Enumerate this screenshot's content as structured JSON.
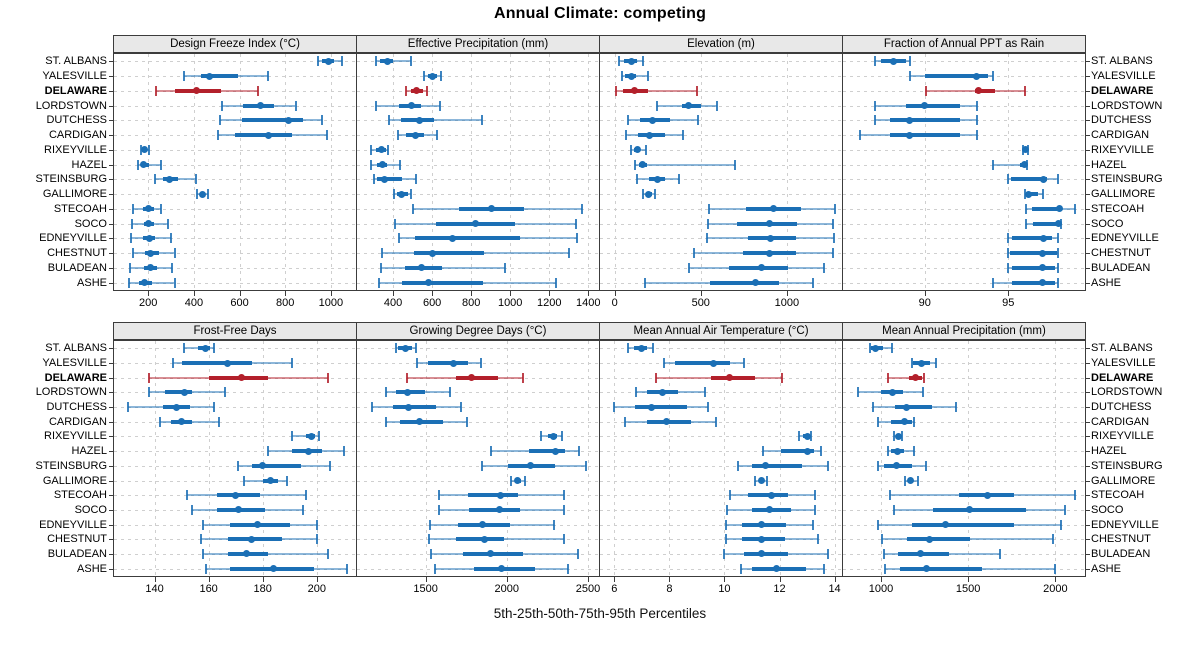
{
  "colors": {
    "site_default": "#1b6fb5",
    "highlight": "#b3202b",
    "grid": "#cfcfcf",
    "strip_bg": "#e8e8e8",
    "border": "#3c3c3c"
  },
  "chart_data": {
    "type": "dotplot-percentiles",
    "title": "Annual Climate: competing",
    "xlabel": "5th-25th-50th-75th-95th Percentiles",
    "percentile_labels": [
      "5th",
      "25th",
      "50th",
      "75th",
      "95th"
    ],
    "layout_rows": 2,
    "layout_cols": 4,
    "highlight_site": "DELAWARE",
    "sites": [
      "ST. ALBANS",
      "YALESVILLE",
      "DELAWARE",
      "LORDSTOWN",
      "DUTCHESS",
      "CARDIGAN",
      "RIXEYVILLE",
      "HAZEL",
      "STEINSBURG",
      "GALLIMORE",
      "STECOAH",
      "SOCO",
      "EDNEYVILLE",
      "CHESTNUT",
      "BULADEAN",
      "ASHE"
    ],
    "panels": [
      {
        "title": "Design Freeze Index (°C)",
        "xlim": [
          50,
          1110
        ],
        "ticks": [
          200,
          400,
          600,
          800,
          1000
        ],
        "values": [
          [
            945,
            960,
            990,
            1015,
            1050
          ],
          [
            355,
            430,
            470,
            595,
            725
          ],
          [
            235,
            315,
            410,
            520,
            680
          ],
          [
            525,
            615,
            690,
            750,
            845
          ],
          [
            515,
            610,
            815,
            880,
            960
          ],
          [
            505,
            580,
            725,
            830,
            985
          ],
          [
            170,
            178,
            185,
            193,
            202
          ],
          [
            155,
            168,
            180,
            205,
            255
          ],
          [
            228,
            265,
            295,
            330,
            410
          ],
          [
            415,
            426,
            437,
            448,
            460
          ],
          [
            132,
            175,
            200,
            225,
            258
          ],
          [
            130,
            180,
            200,
            225,
            285
          ],
          [
            125,
            175,
            205,
            230,
            300
          ],
          [
            135,
            185,
            210,
            245,
            315
          ],
          [
            120,
            180,
            210,
            240,
            305
          ],
          [
            115,
            160,
            185,
            215,
            315
          ]
        ]
      },
      {
        "title": "Effective Precipitation (mm)",
        "xlim": [
          215,
          1455
        ],
        "ticks": [
          400,
          600,
          800,
          1000,
          1200,
          1400
        ],
        "values": [
          [
            310,
            335,
            370,
            400,
            490
          ],
          [
            560,
            580,
            600,
            625,
            645
          ],
          [
            465,
            490,
            520,
            555,
            575
          ],
          [
            310,
            430,
            495,
            545,
            640
          ],
          [
            380,
            440,
            535,
            610,
            855
          ],
          [
            425,
            465,
            515,
            560,
            625
          ],
          [
            285,
            310,
            340,
            365,
            372
          ],
          [
            285,
            315,
            345,
            370,
            435
          ],
          [
            300,
            320,
            355,
            445,
            515
          ],
          [
            405,
            420,
            445,
            475,
            490
          ],
          [
            500,
            740,
            905,
            1070,
            1370
          ],
          [
            410,
            620,
            820,
            1025,
            1335
          ],
          [
            430,
            510,
            705,
            1050,
            1340
          ],
          [
            345,
            505,
            600,
            865,
            1300
          ],
          [
            340,
            460,
            545,
            650,
            975
          ],
          [
            330,
            445,
            580,
            860,
            1235
          ]
        ]
      },
      {
        "title": "Elevation (m)",
        "xlim": [
          -85,
          1320
        ],
        "ticks": [
          0,
          500,
          1000
        ],
        "values": [
          [
            25,
            55,
            100,
            130,
            165
          ],
          [
            40,
            60,
            100,
            125,
            195
          ],
          [
            5,
            50,
            115,
            195,
            480
          ],
          [
            245,
            390,
            430,
            500,
            595
          ],
          [
            80,
            150,
            220,
            320,
            485
          ],
          [
            65,
            135,
            205,
            290,
            395
          ],
          [
            95,
            112,
            130,
            150,
            180
          ],
          [
            120,
            140,
            160,
            185,
            700
          ],
          [
            130,
            200,
            250,
            290,
            375
          ],
          [
            165,
            182,
            197,
            215,
            235
          ],
          [
            545,
            760,
            920,
            1080,
            1280
          ],
          [
            540,
            710,
            900,
            1060,
            1270
          ],
          [
            535,
            775,
            905,
            1055,
            1275
          ],
          [
            460,
            745,
            900,
            1055,
            1265
          ],
          [
            430,
            665,
            855,
            1005,
            1215
          ],
          [
            175,
            555,
            815,
            955,
            1150
          ]
        ]
      },
      {
        "title": "Fraction of Annual PPT as Rain",
        "xlim": [
          85.1,
          99.6
        ],
        "ticks": [
          90,
          95
        ],
        "values": [
          [
            87.0,
            87.4,
            88.1,
            88.9,
            89.1
          ],
          [
            89.1,
            90.0,
            93.1,
            93.8,
            94.1
          ],
          [
            90.1,
            93.0,
            93.2,
            94.2,
            96.0
          ],
          [
            87.0,
            88.9,
            90.0,
            92.1,
            93.1
          ],
          [
            87.0,
            87.9,
            89.1,
            92.1,
            93.1
          ],
          [
            86.1,
            87.9,
            89.1,
            92.1,
            93.1
          ],
          [
            95.9,
            96.0,
            96.05,
            96.1,
            96.2
          ],
          [
            94.1,
            95.7,
            96.0,
            96.1,
            96.15
          ],
          [
            95.0,
            95.15,
            97.1,
            97.3,
            98.0
          ],
          [
            96.0,
            96.1,
            96.2,
            96.8,
            97.1
          ],
          [
            96.05,
            96.4,
            98.1,
            98.25,
            99.0
          ],
          [
            96.05,
            96.5,
            98.0,
            98.1,
            98.15
          ],
          [
            95.0,
            95.2,
            97.1,
            97.6,
            98.0
          ],
          [
            95.0,
            95.1,
            97.05,
            97.9,
            98.0
          ],
          [
            95.0,
            95.2,
            97.05,
            97.8,
            98.0
          ],
          [
            94.1,
            95.2,
            97.05,
            97.8,
            98.0
          ]
        ]
      },
      {
        "title": "Frost-Free Days",
        "xlim": [
          125,
          214.5
        ],
        "ticks": [
          140,
          160,
          180,
          200
        ],
        "values": [
          [
            151,
            156,
            159,
            160.5,
            162
          ],
          [
            147,
            150,
            167,
            176,
            191
          ],
          [
            138,
            160,
            172,
            182,
            204
          ],
          [
            138,
            144,
            151,
            154,
            166
          ],
          [
            130,
            143,
            148,
            153,
            162
          ],
          [
            142,
            146,
            150,
            154,
            164
          ],
          [
            191,
            196,
            198,
            199.5,
            201
          ],
          [
            182,
            191,
            197,
            202,
            210
          ],
          [
            171,
            176,
            180,
            194,
            205
          ],
          [
            173,
            180,
            183,
            185.5,
            189
          ],
          [
            152,
            163,
            170,
            179,
            196
          ],
          [
            154,
            163,
            171,
            181,
            195
          ],
          [
            158,
            168,
            178,
            190,
            200
          ],
          [
            157,
            167,
            176,
            187,
            200
          ],
          [
            158,
            167,
            174,
            182,
            204
          ],
          [
            159,
            168,
            184,
            199,
            211
          ]
        ]
      },
      {
        "title": "Growing Degree Days (°C)",
        "xlim": [
          1077,
          2568
        ],
        "ticks": [
          1500,
          2000,
          2500
        ],
        "values": [
          [
            1315,
            1330,
            1375,
            1415,
            1440
          ],
          [
            1445,
            1515,
            1670,
            1760,
            1840
          ],
          [
            1385,
            1690,
            1785,
            1945,
            2100
          ],
          [
            1255,
            1320,
            1390,
            1495,
            1650
          ],
          [
            1170,
            1300,
            1395,
            1565,
            1720
          ],
          [
            1255,
            1340,
            1460,
            1605,
            1755
          ],
          [
            2210,
            2255,
            2285,
            2310,
            2340
          ],
          [
            1905,
            2135,
            2300,
            2360,
            2445
          ],
          [
            1850,
            2010,
            2145,
            2300,
            2485
          ],
          [
            2025,
            2050,
            2065,
            2085,
            2110
          ],
          [
            1585,
            1760,
            1960,
            2070,
            2350
          ],
          [
            1580,
            1770,
            1955,
            2080,
            2350
          ],
          [
            1525,
            1700,
            1850,
            2020,
            2290
          ],
          [
            1520,
            1690,
            1860,
            1980,
            2355
          ],
          [
            1535,
            1730,
            1900,
            2100,
            2440
          ],
          [
            1560,
            1795,
            1970,
            2175,
            2380
          ]
        ]
      },
      {
        "title": "Mean Annual Air Temperature (°C)",
        "xlim": [
          5.48,
          14.27
        ],
        "ticks": [
          6,
          8,
          10,
          12,
          14
        ],
        "values": [
          [
            6.5,
            6.7,
            7.0,
            7.2,
            7.4
          ],
          [
            7.8,
            8.2,
            9.6,
            10.2,
            10.7
          ],
          [
            7.5,
            9.5,
            10.2,
            11.1,
            12.1
          ],
          [
            6.8,
            7.2,
            7.75,
            8.3,
            9.3
          ],
          [
            6.0,
            6.75,
            7.35,
            8.65,
            9.4
          ],
          [
            6.4,
            7.2,
            7.9,
            8.8,
            9.7
          ],
          [
            12.7,
            12.85,
            13.0,
            13.1,
            13.15
          ],
          [
            11.4,
            12.05,
            13.0,
            13.25,
            13.5
          ],
          [
            10.5,
            11.0,
            11.5,
            12.8,
            13.75
          ],
          [
            11.1,
            11.25,
            11.35,
            11.45,
            11.55
          ],
          [
            10.2,
            10.85,
            11.7,
            12.3,
            13.3
          ],
          [
            10.1,
            11.0,
            11.65,
            12.4,
            13.3
          ],
          [
            10.05,
            10.65,
            11.35,
            12.25,
            13.2
          ],
          [
            10.05,
            10.65,
            11.35,
            12.2,
            13.4
          ],
          [
            10.0,
            10.7,
            11.35,
            12.3,
            13.75
          ],
          [
            10.6,
            11.0,
            11.9,
            12.95,
            13.6
          ]
        ]
      },
      {
        "title": "Mean Annual Precipitation (mm)",
        "xlim": [
          782,
          2170
        ],
        "ticks": [
          1000,
          1500,
          2000
        ],
        "values": [
          [
            935,
            945,
            970,
            1010,
            1065
          ],
          [
            1175,
            1185,
            1230,
            1280,
            1315
          ],
          [
            1040,
            1160,
            1200,
            1235,
            1245
          ],
          [
            870,
            1000,
            1065,
            1125,
            1240
          ],
          [
            955,
            1080,
            1145,
            1290,
            1430
          ],
          [
            980,
            1060,
            1135,
            1180,
            1190
          ],
          [
            1075,
            1090,
            1100,
            1110,
            1118
          ],
          [
            1040,
            1060,
            1095,
            1130,
            1190
          ],
          [
            980,
            1015,
            1090,
            1180,
            1260
          ],
          [
            1140,
            1158,
            1172,
            1186,
            1215
          ],
          [
            1050,
            1450,
            1610,
            1760,
            2110
          ],
          [
            1075,
            1300,
            1510,
            1830,
            2055
          ],
          [
            985,
            1180,
            1370,
            1760,
            2035
          ],
          [
            1005,
            1150,
            1280,
            1510,
            1985
          ],
          [
            1015,
            1100,
            1225,
            1390,
            1685
          ],
          [
            1025,
            1110,
            1260,
            1580,
            2000
          ]
        ]
      }
    ]
  }
}
